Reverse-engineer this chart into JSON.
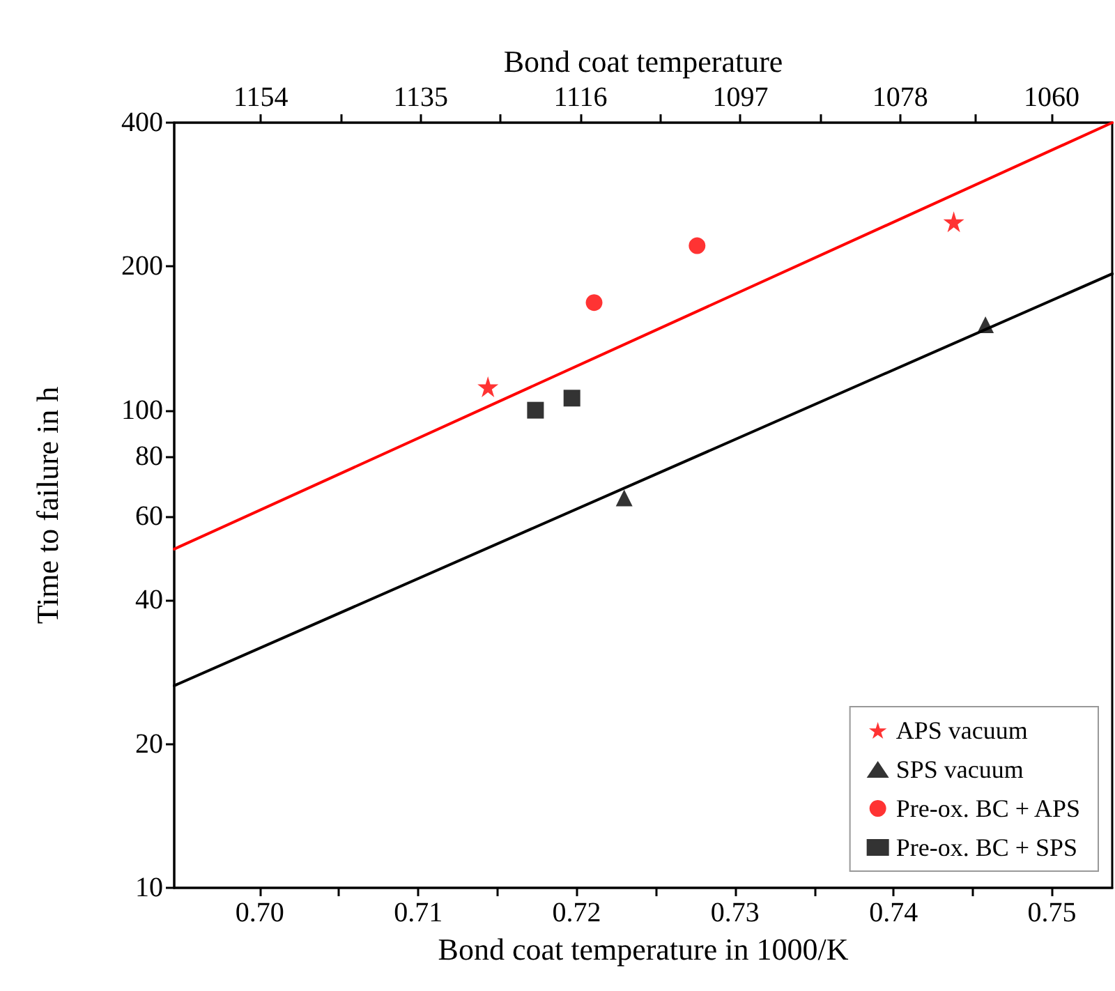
{
  "chart_data": {
    "type": "scatter",
    "xlabel": "Bond coat temperature in 1000/K",
    "x2label": "Bond coat temperature",
    "ylabel": "Time to failure in h",
    "xlim": [
      0.6946,
      0.7538
    ],
    "xticks": [
      {
        "value": 0.7,
        "label": "0.70"
      },
      {
        "value": 0.705,
        "label": null
      },
      0.71,
      {
        "value": 0.715,
        "label": null
      },
      0.72,
      {
        "value": 0.725,
        "label": null
      },
      0.73,
      {
        "value": 0.735,
        "label": null
      },
      0.74,
      {
        "value": 0.745,
        "label": null
      },
      0.75
    ],
    "x2lim": [
      1164.3,
      1052.8
    ],
    "x2ticks": [
      1154,
      {
        "value": 1144.5,
        "label": null
      },
      1135,
      {
        "value": 1125.5,
        "label": null
      },
      1116,
      {
        "value": 1106.5,
        "label": null
      },
      1097,
      {
        "value": 1087.5,
        "label": null
      },
      1078,
      {
        "value": 1069,
        "label": null
      },
      1060
    ],
    "ylim": [
      10,
      400
    ],
    "yticks": [
      10,
      20,
      40,
      60,
      80,
      100,
      200,
      400
    ],
    "log": "y",
    "grid": false,
    "legend": "bottom right",
    "series": [
      {
        "name": "APS vacuum",
        "color": "#ff0000",
        "marker": "star",
        "x": [
          0.7144,
          0.7438
        ],
        "values": [
          112,
          248
        ]
      },
      {
        "name": "SPS vacuum",
        "color": "#000000",
        "marker": "triangle",
        "x": [
          0.723,
          0.7458
        ],
        "values": [
          65.5,
          151
        ]
      },
      {
        "name": "Pre-ox. BC + APS",
        "color": "#ff0000",
        "marker": "circle",
        "x": [
          0.7211,
          0.7276
        ],
        "values": [
          168,
          221
        ]
      },
      {
        "name": "Pre-ox. BC + SPS",
        "color": "#000000",
        "marker": "square",
        "x": [
          0.7174,
          0.7197
        ],
        "values": [
          100,
          106
        ]
      },
      {
        "type": "line",
        "color": "#ff0000",
        "marker": "none",
        "line_style": "solid",
        "x": [
          0.6946,
          0.7538
        ],
        "values": [
          51.2,
          400
        ]
      },
      {
        "type": "line",
        "color": "#000000",
        "marker": "none",
        "line_style": "solid",
        "x": [
          0.6946,
          0.7538
        ],
        "values": [
          26.5,
          193
        ]
      }
    ]
  }
}
